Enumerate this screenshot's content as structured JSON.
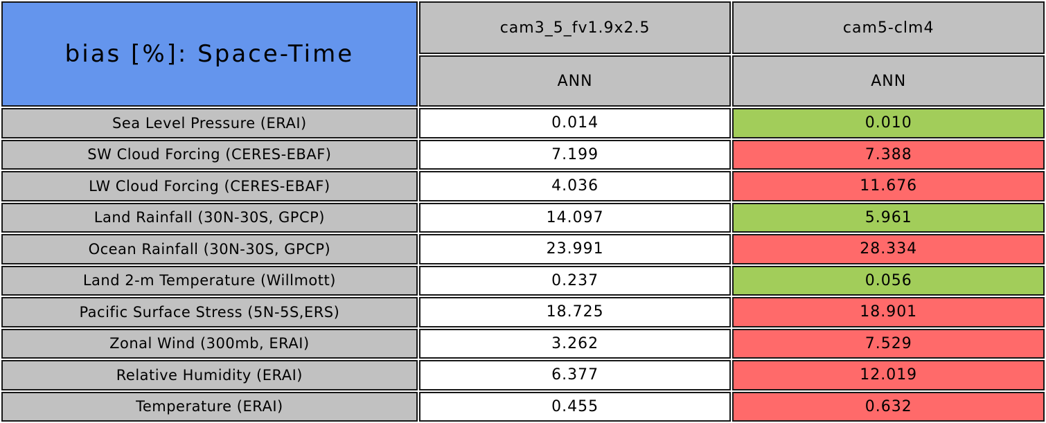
{
  "colors": {
    "title_bg": "#6495ed",
    "header_bg": "#c1c1c1",
    "label_bg": "#c1c1c1",
    "value_bg": "#ffffff",
    "good_bg": "#a2cd5a",
    "bad_bg": "#ff6a6a",
    "border": "#161616",
    "text": "#000000"
  },
  "chart_data": {
    "type": "table",
    "title": "bias [%]: Space-Time",
    "columns": [
      {
        "model": "cam3_5_fv1.9x2.5",
        "season": "ANN"
      },
      {
        "model": "cam5-clm4",
        "season": "ANN"
      }
    ],
    "highlight_legend": "good = green (cam5-clm4 bias lower), bad = red (cam5-clm4 bias higher)",
    "rows": [
      {
        "label": "Sea Level Pressure (ERAI)",
        "values": [
          "0.014",
          "0.010"
        ],
        "highlight": [
          "none",
          "good"
        ]
      },
      {
        "label": "SW Cloud Forcing (CERES-EBAF)",
        "values": [
          "7.199",
          "7.388"
        ],
        "highlight": [
          "none",
          "bad"
        ]
      },
      {
        "label": "LW Cloud Forcing (CERES-EBAF)",
        "values": [
          "4.036",
          "11.676"
        ],
        "highlight": [
          "none",
          "bad"
        ]
      },
      {
        "label": "Land Rainfall (30N-30S, GPCP)",
        "values": [
          "14.097",
          "5.961"
        ],
        "highlight": [
          "none",
          "good"
        ]
      },
      {
        "label": "Ocean Rainfall (30N-30S, GPCP)",
        "values": [
          "23.991",
          "28.334"
        ],
        "highlight": [
          "none",
          "bad"
        ]
      },
      {
        "label": "Land 2-m Temperature (Willmott)",
        "values": [
          "0.237",
          "0.056"
        ],
        "highlight": [
          "none",
          "good"
        ]
      },
      {
        "label": "Pacific Surface Stress (5N-5S,ERS)",
        "values": [
          "18.725",
          "18.901"
        ],
        "highlight": [
          "none",
          "bad"
        ]
      },
      {
        "label": "Zonal Wind (300mb, ERAI)",
        "values": [
          "3.262",
          "7.529"
        ],
        "highlight": [
          "none",
          "bad"
        ]
      },
      {
        "label": "Relative Humidity (ERAI)",
        "values": [
          "6.377",
          "12.019"
        ],
        "highlight": [
          "none",
          "bad"
        ]
      },
      {
        "label": "Temperature (ERAI)",
        "values": [
          "0.455",
          "0.632"
        ],
        "highlight": [
          "none",
          "bad"
        ]
      }
    ]
  }
}
